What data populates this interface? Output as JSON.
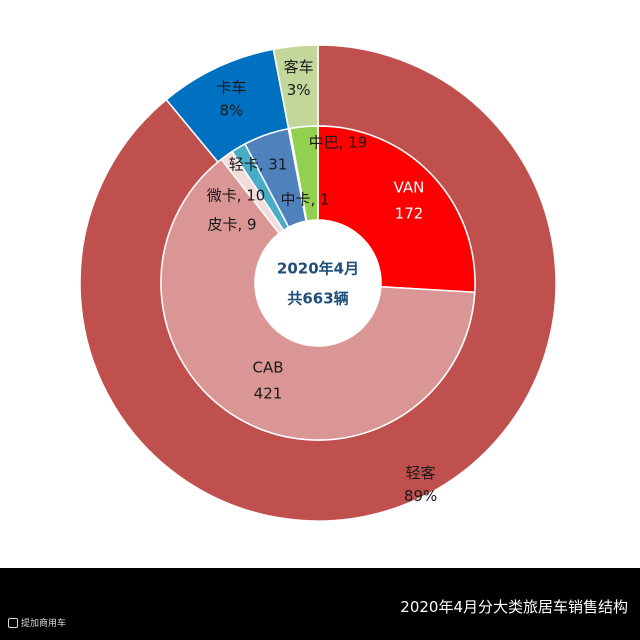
{
  "chart_data": {
    "type": "pie",
    "subtype": "nested-donut",
    "center_label": [
      "2020年4月",
      "共663辆"
    ],
    "outer_ring": [
      {
        "name": "轻客",
        "value": 89,
        "label": "89%",
        "color": "#c0504d"
      },
      {
        "name": "卡车",
        "value": 8,
        "label": "8%",
        "color": "#0070c0"
      },
      {
        "name": "客车",
        "value": 3,
        "label": "3%",
        "color": "#c4d79b"
      }
    ],
    "inner_ring": [
      {
        "name": "VAN",
        "value": 172,
        "color": "#ff0000",
        "label_style": "stacked",
        "label_color": "light"
      },
      {
        "name": "CAB",
        "value": 421,
        "color": "#da9694",
        "label_style": "stacked",
        "label_color": "dark"
      },
      {
        "name": "皮卡",
        "value": 9,
        "color": "#f2dcdb",
        "label_style": "inline",
        "label_color": "dark"
      },
      {
        "name": "微卡",
        "value": 10,
        "color": "#4bacc6",
        "label_style": "inline",
        "label_color": "dark"
      },
      {
        "name": "轻卡",
        "value": 31,
        "color": "#4f81bd",
        "label_style": "inline",
        "label_color": "dark"
      },
      {
        "name": "中卡",
        "value": 1,
        "color": "#17375e",
        "label_style": "inline",
        "label_color": "dark"
      },
      {
        "name": "中巴",
        "value": 19,
        "color": "#92d050",
        "label_style": "inline",
        "label_color": "dark"
      }
    ]
  },
  "footer": {
    "caption": "2020年4月分大类旅居车销售结构",
    "watermark": "提加商用车"
  }
}
